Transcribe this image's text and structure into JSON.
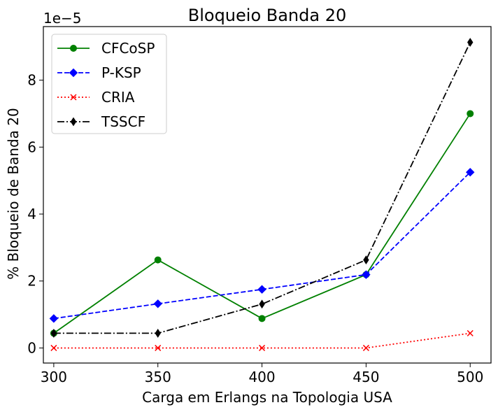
{
  "chart_data": {
    "type": "line",
    "title": "Bloqueio Banda 20",
    "xlabel": "Carga em Erlangs na Topologia USA",
    "ylabel": "% Bloqueio de Banda 20",
    "offset_text": "1e−5",
    "x": [
      300,
      350,
      400,
      450,
      500
    ],
    "x_ticks": [
      300,
      350,
      400,
      450,
      500
    ],
    "x_tick_labels": [
      "300",
      "350",
      "400",
      "450",
      "500"
    ],
    "y_ticks": [
      0,
      2,
      4,
      6,
      8
    ],
    "y_tick_labels": [
      "0",
      "2",
      "4",
      "6",
      "8"
    ],
    "xlim": [
      295,
      510
    ],
    "ylim": [
      -0.45,
      9.6
    ],
    "y_scale_factor": 1e-05,
    "grid": false,
    "legend_position": "upper left",
    "series": [
      {
        "name": "CFCoSP",
        "values": [
          0.44,
          2.63,
          0.88,
          2.19,
          7.0
        ],
        "color": "#008000",
        "linestyle": "solid",
        "marker": "circle"
      },
      {
        "name": "P-KSP",
        "values": [
          0.88,
          1.32,
          1.75,
          2.19,
          5.25
        ],
        "color": "#0000ff",
        "linestyle": "dashed",
        "marker": "diamond"
      },
      {
        "name": "CRIA",
        "values": [
          0.0,
          0.0,
          0.0,
          0.0,
          0.44
        ],
        "color": "#ff0000",
        "linestyle": "dotted",
        "marker": "x"
      },
      {
        "name": "TSSCF",
        "values": [
          0.44,
          0.44,
          1.31,
          2.63,
          9.13
        ],
        "color": "#000000",
        "linestyle": "dashdot",
        "marker": "thin_diamond"
      }
    ]
  }
}
